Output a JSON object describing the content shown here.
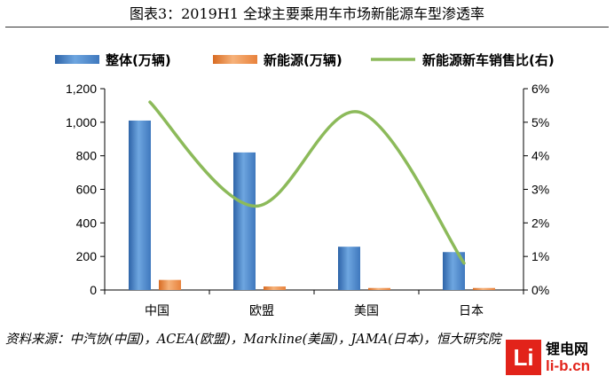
{
  "title": "图表3：2019H1 全球主要乘用车市场新能源车型渗透率",
  "source_text": "资料来源：中汽协(中国)，ACEA(欧盟)，Markline(美国)，JAMA(日本)，恒大研究院",
  "watermark": {
    "logo_letter": "Li",
    "name_cn": "锂电网",
    "domain": "li-b.cn"
  },
  "colors": {
    "total_bar": "#3f78bd",
    "ev_bar": "#e8823c",
    "ratio_line": "#8cba5a"
  },
  "chart_data": {
    "type": "bar",
    "categories": [
      "中国",
      "欧盟",
      "美国",
      "日本"
    ],
    "series": [
      {
        "name": "整体(万辆)",
        "type": "bar",
        "axis": "left",
        "values": [
          1010,
          820,
          258,
          226
        ]
      },
      {
        "name": "新能源(万辆)",
        "type": "bar",
        "axis": "left",
        "values": [
          60,
          21,
          12,
          12
        ]
      },
      {
        "name": "新能源新车销售比(右)",
        "type": "line",
        "axis": "right",
        "smooth": true,
        "values": [
          5.6,
          2.5,
          5.3,
          0.8
        ]
      }
    ],
    "ylim": [
      0,
      1200
    ],
    "yticks": [
      "0",
      "200",
      "400",
      "600",
      "800",
      "1,000",
      "1,200"
    ],
    "y2lim": [
      0,
      6
    ],
    "y2ticks": [
      "0%",
      "1%",
      "2%",
      "3%",
      "4%",
      "5%",
      "6%"
    ],
    "grid": false,
    "legend_position": "top"
  }
}
